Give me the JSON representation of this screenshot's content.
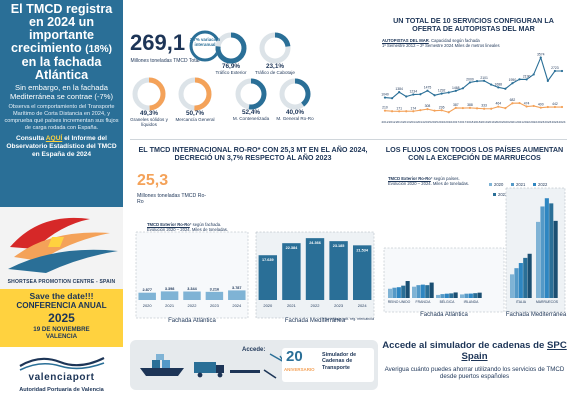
{
  "hero": {
    "title_main": "El TMCD registra en 2024 un importante crecimiento",
    "title_pct": "(18%)",
    "title_end": "en la fachada Atlántica",
    "subtitle": "Sin embargo, en la fachada Mediterránea se contrae (-7%)",
    "body": "Observa el comportamiento del Transporte Marítimo de Corta Distancia en 2024, y comprueba qué países incrementan sus flujos de carga rodada con España.",
    "link_prefix": "Consulta",
    "link_aqui": "AQUÍ",
    "link_suffix": "el Informe del Observatorio Estadístico del TMCD en España de 2024"
  },
  "spc_logo_text": "SHORTSEA PROMOTION CENTRE - SPAIN",
  "save_date": {
    "headline": "Save the date!!!",
    "event": "CONFERENCIA ANUAL",
    "year": "2025",
    "day": "19 DE NOVIEMBRE",
    "city": "VALENCIA"
  },
  "valenciaport": {
    "name": "valenciaport",
    "subtitle": "Autoridad Portuaria de Valencia"
  },
  "kpis": {
    "main_value": "269,1",
    "main_label": "Millones toneladas TMCD Total",
    "donut_center": "3,7% variación interanual",
    "donuts": [
      {
        "value": "76,9%",
        "label": "Tráfico Exterior",
        "fraction": 0.769
      },
      {
        "value": "23,1%",
        "label": "Tráfico de Cabotaje",
        "fraction": 0.231
      },
      {
        "value": "49,3%",
        "label": "Graneles sólidos y líquidos",
        "fraction": 0.493
      },
      {
        "value": "50,7%",
        "label": "Mercancía General",
        "fraction": 0.507
      },
      {
        "value": "52,4%",
        "label": "M. Contenerizada",
        "fraction": 0.524
      },
      {
        "value": "40,0%",
        "label": "M. General Ro-Ro",
        "fraction": 0.4
      }
    ],
    "colors": {
      "orange": "#f4a259",
      "blue": "#2a6f97",
      "light": "#dce3e8"
    }
  },
  "services_section": {
    "title": "UN TOTAL DE 10 SERVICIOS CONFIGURAN LA OFERTA DE AUTOPISTAS DEL MAR",
    "caption_bold": "AUTOPISTAS DEL MAR",
    "caption_rest": ". Capacidad según fachada",
    "caption_line2": "1º Semestre 2012 – 2º Semestre 2024 Miles de metros lineales"
  },
  "ro_section": {
    "title": "EL TMCD INTERNACIONAL RO-RO* CON 25,3 MT EN EL AÑO 2024, DECRECIÓ UN 3,7% RESPECTO AL AÑO 2023",
    "big_value": "25,3",
    "big_label": "Millones toneladas TMCD Ro-Ro",
    "caption_bold": "TMCD Exterior Ro-Ro",
    "caption_rest": "* según fachada.",
    "caption_line2": "Evolución 2020 – 2024. Miles de toneladas.",
    "footnote": "* No incluye volt. reg. mercancía",
    "group_atl": "Fachada Atlántica",
    "group_med": "Fachada Mediterránea"
  },
  "flows_section": {
    "title": "LOS FLUJOS CON TODOS LOS PAÍSES AUMENTAN CON LA EXCEPCIÓN DE MARRUECOS",
    "caption_bold": "TMCD Exterior Ro-Ro",
    "caption_rest": "* según países.",
    "caption_line2": "Evolución 2020 – 2024. Miles de toneladas.",
    "group_atl": "Fachada Atlántica",
    "group_med": "Fachada Mediterránea"
  },
  "access": {
    "label": "Accede:",
    "badge_title": "Simulador de Cadenas de Transporte",
    "badge_num": "20",
    "badge_sub": "ANIVERSARIO"
  },
  "simulator": {
    "title_a": "Accede al simulador de cadenas de",
    "title_spc": "SPC Spain",
    "body": "Averigua cuánto puedes ahorrar utilizando los servicios de TMCD desde puertos españoles"
  },
  "chart_data": [
    {
      "type": "line",
      "title": "UN TOTAL DE 10 SERVICIOS CONFIGURAN LA OFERTA DE AUTOPISTAS DEL MAR",
      "x": [
        "1S 2012",
        "2S 2012",
        "1S 2013",
        "2S 2013",
        "1S 2014",
        "2S 2014",
        "1S 2015",
        "2S 2015",
        "1S 2016",
        "2S 2016",
        "1S 2017",
        "2S 2017",
        "1S 2018",
        "2S 2018",
        "1S 2019",
        "2S 2019",
        "1S 2020",
        "2S 2020",
        "1S 2021",
        "2S 2021",
        "1S 2022",
        "2S 2022",
        "1S 2023",
        "2S 2023",
        "1S 2024",
        "2S 2024"
      ],
      "x_tick_labels": [
        "2012",
        "2012",
        "2013",
        "2013",
        "2014",
        "2014",
        "2015",
        "2015",
        "2016",
        "2016",
        "2017",
        "2017",
        "2018",
        "2018",
        "2019",
        "2019",
        "2020",
        "2020",
        "2021",
        "2021",
        "2022",
        "2022",
        "2023",
        "2023",
        "2024",
        "2024"
      ],
      "series": [
        {
          "color": "#2a6f97",
          "values": [
            1040,
            1000,
            1384,
            1109,
            1234,
            1250,
            1475,
            1186,
            1292,
            1362,
            1468,
            1628,
            2000,
            2081,
            2101,
            1863,
            1688,
            1600,
            1950,
            2198,
            2190,
            2505,
            3574,
            2100,
            2723,
            2723
          ]
        },
        {
          "color": "#f4a259",
          "values": [
            210,
            176,
            171,
            176,
            174,
            242,
            308,
            211,
            236,
            110,
            387,
            376,
            388,
            360,
            333,
            333,
            464,
            371,
            682,
            694,
            474,
            511,
            400,
            442,
            442,
            442
          ]
        }
      ],
      "ylim": [
        0,
        3800
      ]
    },
    {
      "type": "bar",
      "title": "EL TMCD INTERNACIONAL RO-RO* CON 25,3 MT EN EL AÑO 2024, DECRECIÓ UN 3,7% RESPECTO AL AÑO 2023",
      "categories": [
        "2020",
        "2021",
        "2022",
        "2023",
        "2024"
      ],
      "series": [
        {
          "name": "Fachada Atlántica",
          "values": [
            2877,
            3398,
            3344,
            3216,
            3787
          ],
          "labels": [
            "2.877",
            "3.398",
            "3.344",
            "3.216",
            "3.787"
          ]
        },
        {
          "name": "Fachada Mediterránea",
          "values": [
            17639,
            22384,
            24366,
            23185,
            21534
          ],
          "labels": [
            "17.639",
            "22.384",
            "24.366",
            "23.185",
            "21.534"
          ]
        }
      ],
      "ylim": [
        0,
        26000
      ]
    },
    {
      "type": "bar",
      "title": "LOS FLUJOS CON TODOS LOS PAÍSES AUMENTAN CON LA EXCEPCIÓN DE MARRUECOS",
      "categories": [
        "REINO UNIDO",
        "FRANCIA",
        "BÉLGICA",
        "IRLANDA",
        "ITALIA",
        "MARRUECOS"
      ],
      "series": [
        {
          "name": "2020",
          "color": "#7fb3d5",
          "values": [
            900,
            1100,
            300,
            350,
            2300,
            7400
          ]
        },
        {
          "name": "2021",
          "color": "#5499c7",
          "values": [
            1000,
            1250,
            380,
            420,
            2900,
            8900
          ]
        },
        {
          "name": "2022",
          "color": "#2e86c1",
          "values": [
            1050,
            1300,
            420,
            430,
            3400,
            9700
          ]
        },
        {
          "name": "2023",
          "color": "#2a6f97",
          "values": [
            1200,
            1250,
            450,
            470,
            3900,
            9200
          ]
        },
        {
          "name": "2024",
          "color": "#1b4f72",
          "values": [
            1650,
            1500,
            540,
            520,
            4300,
            7500
          ]
        }
      ],
      "ylim": [
        0,
        10500
      ]
    }
  ]
}
